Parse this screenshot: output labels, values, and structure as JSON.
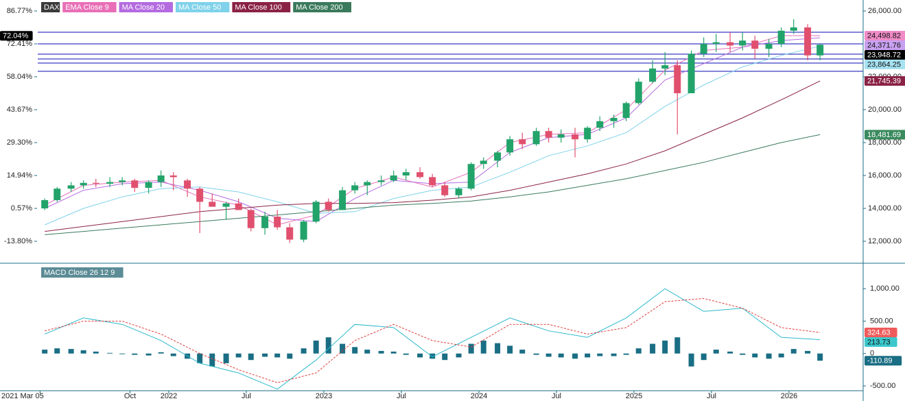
{
  "chart_data": [
    {
      "type": "candlestick",
      "name": "DAX",
      "up_color": "#22a36a",
      "down_color": "#e0506e",
      "xlim": [
        2021.155,
        2026.478
      ],
      "ylim": [
        10708,
        26667
      ],
      "y2lim": [
        -23.08,
        91.56
      ],
      "x": [
        2021.2,
        2021.28,
        2021.37,
        2021.45,
        2021.53,
        2021.62,
        2021.7,
        2021.78,
        2021.87,
        2021.95,
        2022.03,
        2022.12,
        2022.2,
        2022.28,
        2022.37,
        2022.45,
        2022.53,
        2022.62,
        2022.7,
        2022.78,
        2022.87,
        2022.95,
        2023.03,
        2023.12,
        2023.2,
        2023.28,
        2023.37,
        2023.45,
        2023.53,
        2023.62,
        2023.7,
        2023.78,
        2023.87,
        2023.95,
        2024.03,
        2024.12,
        2024.2,
        2024.28,
        2024.37,
        2024.45,
        2024.53,
        2024.62,
        2024.7,
        2024.78,
        2024.87,
        2024.95,
        2025.03,
        2025.12,
        2025.2,
        2025.28,
        2025.37,
        2025.45,
        2025.53,
        2025.62,
        2025.7,
        2025.78,
        2025.87,
        2025.95,
        2026.03,
        2026.12,
        2026.2
      ],
      "open": [
        14000,
        14500,
        15200,
        15400,
        15550,
        15500,
        15600,
        15700,
        15250,
        15600,
        16000,
        15700,
        15200,
        14400,
        14100,
        14300,
        13900,
        12800,
        13500,
        12850,
        12100,
        13200,
        14400,
        13900,
        15100,
        15400,
        15600,
        15700,
        16000,
        16200,
        15900,
        15400,
        14800,
        15200,
        16700,
        16900,
        17400,
        18200,
        17900,
        18700,
        18300,
        18500,
        18200,
        18900,
        19300,
        19500,
        20400,
        21700,
        22500,
        22700,
        21000,
        23400,
        24000,
        24100,
        23900,
        24200,
        23700,
        24000,
        24800,
        25000,
        23300
      ],
      "high": [
        14600,
        15300,
        15600,
        15700,
        15800,
        15900,
        15900,
        15800,
        15700,
        16300,
        16200,
        15800,
        15300,
        14900,
        14400,
        14600,
        14000,
        13800,
        13900,
        13100,
        13300,
        14500,
        14600,
        15300,
        15600,
        15700,
        16000,
        16300,
        16400,
        16500,
        16100,
        15600,
        15300,
        16800,
        17100,
        17500,
        18400,
        18600,
        18900,
        18900,
        18800,
        18900,
        19000,
        19600,
        19700,
        20500,
        21900,
        23000,
        23500,
        23000,
        23600,
        24400,
        24600,
        24700,
        24700,
        24500,
        24300,
        25000,
        25500,
        25200,
        24000
      ],
      "low": [
        13900,
        14400,
        15000,
        15200,
        15300,
        15300,
        15400,
        15000,
        14900,
        15300,
        15100,
        14700,
        12500,
        14100,
        13300,
        13900,
        12600,
        12400,
        12700,
        11900,
        11950,
        13100,
        13800,
        13900,
        14900,
        14800,
        15400,
        15600,
        15700,
        15800,
        15300,
        14700,
        14600,
        15100,
        16400,
        16500,
        17200,
        17600,
        17800,
        18000,
        18000,
        17100,
        18000,
        18700,
        18900,
        19300,
        20300,
        21600,
        22100,
        18500,
        21000,
        23200,
        23500,
        23500,
        23600,
        23100,
        23200,
        23800,
        24600,
        23000,
        23000
      ],
      "close": [
        14500,
        15200,
        15400,
        15550,
        15500,
        15600,
        15700,
        15250,
        15600,
        16000,
        15900,
        15200,
        14400,
        14100,
        14300,
        13900,
        12800,
        13500,
        12850,
        12100,
        13200,
        14400,
        13900,
        15100,
        15400,
        15600,
        15700,
        16000,
        16200,
        15900,
        15400,
        14800,
        15200,
        16700,
        16900,
        17400,
        18200,
        17900,
        18700,
        18300,
        18500,
        18200,
        18900,
        19300,
        19500,
        20400,
        21700,
        22500,
        22700,
        21000,
        23400,
        24000,
        24100,
        23900,
        24200,
        23700,
        24000,
        24800,
        25000,
        23300,
        23948.72
      ],
      "series": [
        {
          "name": "EMA Close 9",
          "color": "#e86fb7",
          "x": [
            2021.2,
            2021.45,
            2021.7,
            2021.95,
            2022.2,
            2022.45,
            2022.7,
            2022.95,
            2023.2,
            2023.45,
            2023.7,
            2023.95,
            2024.2,
            2024.45,
            2024.7,
            2024.95,
            2025.2,
            2025.45,
            2025.7,
            2025.95,
            2026.2
          ],
          "values": [
            14200,
            15400,
            15600,
            15700,
            14700,
            14200,
            13000,
            13600,
            15200,
            15900,
            15300,
            16200,
            18000,
            18500,
            18600,
            20000,
            22400,
            23600,
            23800,
            24500,
            24498.82
          ]
        },
        {
          "name": "MA Close 20",
          "color": "#b46be0",
          "x": [
            2021.2,
            2021.45,
            2021.7,
            2021.95,
            2022.2,
            2022.45,
            2022.7,
            2022.95,
            2023.2,
            2023.45,
            2023.7,
            2023.95,
            2024.2,
            2024.45,
            2024.7,
            2024.95,
            2025.2,
            2025.45,
            2025.7,
            2025.95,
            2026.2
          ],
          "values": [
            14000,
            15100,
            15500,
            15600,
            15100,
            14400,
            13400,
            13200,
            14600,
            15700,
            15500,
            15600,
            17400,
            18300,
            18500,
            19500,
            21800,
            22800,
            23800,
            24200,
            24371.76
          ]
        },
        {
          "name": "MA Close 50",
          "color": "#7fd2ea",
          "x": [
            2021.2,
            2021.45,
            2021.7,
            2021.95,
            2022.2,
            2022.45,
            2022.7,
            2022.95,
            2023.2,
            2023.45,
            2023.7,
            2023.95,
            2024.2,
            2024.45,
            2024.7,
            2024.95,
            2025.2,
            2025.45,
            2025.7,
            2025.95,
            2026.2
          ],
          "values": [
            13000,
            14000,
            14700,
            15200,
            15300,
            15000,
            14400,
            13700,
            13800,
            14600,
            15100,
            15300,
            16200,
            17200,
            17800,
            18600,
            20200,
            21500,
            22600,
            23300,
            23864.25
          ]
        },
        {
          "name": "MA Close 100",
          "color": "#8a2245",
          "x": [
            2021.2,
            2021.45,
            2021.7,
            2021.95,
            2022.2,
            2022.45,
            2022.7,
            2022.95,
            2023.2,
            2023.45,
            2023.7,
            2023.95,
            2024.2,
            2024.45,
            2024.7,
            2024.95,
            2025.2,
            2025.45,
            2025.7,
            2025.95,
            2026.2
          ],
          "values": [
            12600,
            12900,
            13200,
            13500,
            13800,
            14000,
            14200,
            14300,
            14300,
            14350,
            14500,
            14700,
            15100,
            15600,
            16100,
            16700,
            17500,
            18500,
            19500,
            20600,
            21745.39
          ]
        },
        {
          "name": "MA Close 200",
          "color": "#3a7a5c",
          "x": [
            2021.2,
            2021.45,
            2021.7,
            2021.95,
            2022.2,
            2022.45,
            2022.7,
            2022.95,
            2023.2,
            2023.45,
            2023.7,
            2023.95,
            2024.2,
            2024.45,
            2024.7,
            2024.95,
            2025.2,
            2025.45,
            2025.7,
            2025.95,
            2026.2
          ],
          "values": [
            12400,
            12600,
            12800,
            13000,
            13200,
            13400,
            13600,
            13800,
            14000,
            14200,
            14300,
            14450,
            14700,
            15000,
            15400,
            15800,
            16300,
            16800,
            17400,
            18000,
            18481.69
          ]
        }
      ],
      "yticks": [
        {
          "value": 12000,
          "label": "12,000.00"
        },
        {
          "value": 14000,
          "label": "14,000.00"
        },
        {
          "value": 16000,
          "label": "16,000.00"
        },
        {
          "value": 18000,
          "label": "18,000.00"
        },
        {
          "value": 20000,
          "label": "20,000.00"
        },
        {
          "value": 22000,
          "label": "22,000.00"
        },
        {
          "value": 26000,
          "label": "26,000.00"
        }
      ],
      "y2ticks": [
        {
          "value": 86.77,
          "label": "86.77%"
        },
        {
          "value": 72.41,
          "label": "72.41%"
        },
        {
          "value": 58.04,
          "label": "58.04%"
        },
        {
          "value": 43.67,
          "label": "43.67%"
        },
        {
          "value": 29.3,
          "label": "29.30%"
        },
        {
          "value": 14.94,
          "label": "14.94%"
        },
        {
          "value": 0.57,
          "label": "0.57%"
        },
        {
          "value": -13.8,
          "label": "-13.80%"
        }
      ],
      "hlines": [
        24708,
        24000,
        23375,
        23083,
        22833,
        22333
      ],
      "hline_color": "#3b3bc4",
      "left_tag": {
        "value": 72.04,
        "label": "72.04%",
        "color": "#000000"
      },
      "value_tags": [
        {
          "value": 24498.82,
          "label": "24,498.82",
          "color": "#f08cc8"
        },
        {
          "value": 24371.76,
          "label": "24,371.76",
          "color": "#c7a0f0"
        },
        {
          "value": 23948.72,
          "label": "23,948.72",
          "color": "#000000"
        },
        {
          "value": 23864.25,
          "label": "23,864.25",
          "color": "#a6e2f2"
        },
        {
          "value": 21745.39,
          "label": "21,745.39",
          "color": "#8a2245"
        },
        {
          "value": 18481.69,
          "label": "18,481.69",
          "color": "#3a8a5e"
        }
      ]
    },
    {
      "type": "macd",
      "title": "MACD Close 26 12 9",
      "title_color": "#5c8c96",
      "xlim": [
        2021.155,
        2026.478
      ],
      "ylim": [
        -574,
        1362
      ],
      "xticks": [
        {
          "value": 2021.17,
          "label": "2021 Mar 05"
        },
        {
          "value": 2021.75,
          "label": "Oct"
        },
        {
          "value": 2022,
          "label": "2022"
        },
        {
          "value": 2022.5,
          "label": "Jul"
        },
        {
          "value": 2023,
          "label": "2023"
        },
        {
          "value": 2023.5,
          "label": "Jul"
        },
        {
          "value": 2024,
          "label": "2024"
        },
        {
          "value": 2024.5,
          "label": "Jul"
        },
        {
          "value": 2025,
          "label": "2025"
        },
        {
          "value": 2025.5,
          "label": "Jul"
        },
        {
          "value": 2026,
          "label": "2026"
        }
      ],
      "yticks": [
        {
          "value": 1000,
          "label": "1,000.00"
        },
        {
          "value": 500,
          "label": "500.00"
        },
        {
          "value": 0,
          "label": "0"
        },
        {
          "value": -500,
          "label": "-500.00"
        }
      ],
      "x": [
        2021.2,
        2021.28,
        2021.37,
        2021.45,
        2021.53,
        2021.62,
        2021.7,
        2021.78,
        2021.87,
        2021.95,
        2022.03,
        2022.12,
        2022.2,
        2022.28,
        2022.37,
        2022.45,
        2022.53,
        2022.62,
        2022.7,
        2022.78,
        2022.87,
        2022.95,
        2023.03,
        2023.12,
        2023.2,
        2023.28,
        2023.37,
        2023.45,
        2023.53,
        2023.62,
        2023.7,
        2023.78,
        2023.87,
        2023.95,
        2024.03,
        2024.12,
        2024.2,
        2024.28,
        2024.37,
        2024.45,
        2024.53,
        2024.62,
        2024.7,
        2024.78,
        2024.87,
        2024.95,
        2025.03,
        2025.12,
        2025.2,
        2025.28,
        2025.37,
        2025.45,
        2025.53,
        2025.62,
        2025.7,
        2025.78,
        2025.87,
        2025.95,
        2026.03,
        2026.12,
        2026.2
      ],
      "histogram": {
        "color": "#1a6e84",
        "values": [
          60,
          80,
          70,
          50,
          30,
          10,
          -10,
          -20,
          -30,
          20,
          -40,
          -80,
          -150,
          -200,
          -150,
          -60,
          -100,
          -50,
          -60,
          -80,
          80,
          200,
          250,
          150,
          100,
          60,
          40,
          30,
          -20,
          -60,
          -80,
          -100,
          -60,
          150,
          200,
          160,
          120,
          60,
          -20,
          -50,
          -60,
          -80,
          -60,
          -40,
          -40,
          -20,
          80,
          150,
          200,
          250,
          -200,
          -100,
          60,
          30,
          -20,
          -60,
          -80,
          -60,
          70,
          40,
          -110.89
        ]
      },
      "series": [
        {
          "color": "#2bb8cc",
          "style": "solid",
          "x": [
            2021.2,
            2021.45,
            2021.7,
            2021.95,
            2022.2,
            2022.45,
            2022.7,
            2022.95,
            2023.2,
            2023.45,
            2023.7,
            2023.95,
            2024.2,
            2024.45,
            2024.7,
            2024.95,
            2025.2,
            2025.45,
            2025.7,
            2025.95,
            2026.2
          ],
          "values": [
            300,
            550,
            450,
            200,
            -150,
            -300,
            -550,
            -100,
            450,
            400,
            -50,
            250,
            550,
            350,
            250,
            550,
            1000,
            650,
            700,
            250,
            213.73
          ]
        },
        {
          "color": "#e03a3a",
          "style": "dashed",
          "x": [
            2021.2,
            2021.45,
            2021.7,
            2021.95,
            2022.2,
            2022.45,
            2022.7,
            2022.95,
            2023.2,
            2023.45,
            2023.7,
            2023.95,
            2024.2,
            2024.45,
            2024.7,
            2024.95,
            2025.2,
            2025.45,
            2025.7,
            2025.95,
            2026.2
          ],
          "values": [
            350,
            500,
            500,
            300,
            0,
            -250,
            -450,
            -300,
            200,
            450,
            200,
            100,
            450,
            450,
            300,
            400,
            800,
            850,
            700,
            400,
            324.63
          ]
        }
      ],
      "value_tags": [
        {
          "value": 324.63,
          "label": "324.63",
          "color": "#ef5b5b"
        },
        {
          "value": 213.73,
          "label": "213.73",
          "color": "#3cc8cc"
        },
        {
          "value": -110.89,
          "label": "-110.89",
          "color": "#1a6e84"
        }
      ]
    }
  ]
}
